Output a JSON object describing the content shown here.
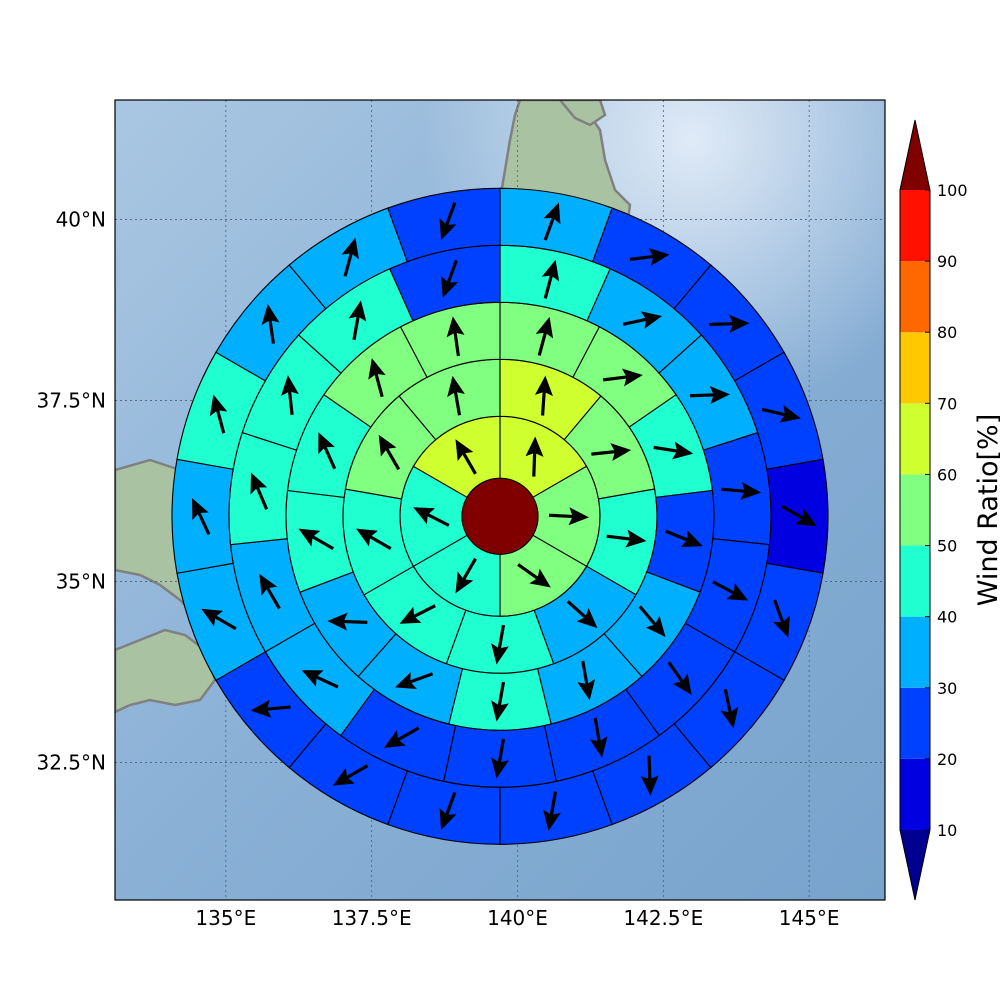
{
  "chart_data": {
    "type": "heatmap",
    "subtype": "polar-sector-wind-map",
    "title": "",
    "xlabel": "",
    "ylabel": "",
    "x_ticks": [
      "135°E",
      "137.5°E",
      "140°E",
      "142.5°E",
      "145°E"
    ],
    "x_tick_values": [
      135,
      137.5,
      140,
      142.5,
      145
    ],
    "y_ticks": [
      "40°N",
      "37.5°N",
      "35°N",
      "32.5°N"
    ],
    "y_tick_values": [
      40,
      37.5,
      35,
      32.5
    ],
    "xlim": [
      133.1,
      146.3
    ],
    "ylim": [
      30.6,
      41.65
    ],
    "center": {
      "lon": 139.7,
      "lat": 35.9,
      "value": 100
    },
    "colorbar": {
      "label": "Wind Ratio[%]",
      "ticks": [
        "10",
        "20",
        "30",
        "40",
        "50",
        "60",
        "70",
        "80",
        "90",
        "100"
      ],
      "levels": [
        10,
        20,
        30,
        40,
        50,
        60,
        70,
        80,
        90,
        100
      ],
      "colors": [
        "#0000e0",
        "#0040ff",
        "#00b0ff",
        "#20ffd0",
        "#80ff80",
        "#d0ff30",
        "#ffc800",
        "#ff6800",
        "#ff1000"
      ],
      "under_color": "#000090",
      "over_color": "#800000",
      "extend": "both"
    },
    "grid": true,
    "map": {
      "land_color": "#a8c4a0",
      "sea_color": "#8fb2d6",
      "coast_color": "#808080"
    },
    "rings": [
      {
        "ring": 1,
        "sectors": [
          {
            "v": 65,
            "dir": 2
          },
          {
            "v": 55,
            "dir": 93
          },
          {
            "v": 55,
            "dir": 125
          },
          {
            "v": 45,
            "dir": 210
          },
          {
            "v": 45,
            "dir": 297
          },
          {
            "v": 65,
            "dir": 330
          }
        ]
      },
      {
        "ring": 2,
        "sectors": [
          {
            "v": 65,
            "dir": 4
          },
          {
            "v": 55,
            "dir": 84
          },
          {
            "v": 45,
            "dir": 97
          },
          {
            "v": 35,
            "dir": 132
          },
          {
            "v": 45,
            "dir": 190
          },
          {
            "v": 45,
            "dir": 243
          },
          {
            "v": 45,
            "dir": 300
          },
          {
            "v": 55,
            "dir": 330
          },
          {
            "v": 55,
            "dir": 350
          }
        ]
      },
      {
        "ring": 3,
        "sectors": [
          {
            "v": 55,
            "dir": 15
          },
          {
            "v": 55,
            "dir": 83
          },
          {
            "v": 45,
            "dir": 99
          },
          {
            "v": 25,
            "dir": 112
          },
          {
            "v": 35,
            "dir": 140
          },
          {
            "v": 35,
            "dir": 170
          },
          {
            "v": 45,
            "dir": 190
          },
          {
            "v": 35,
            "dir": 250
          },
          {
            "v": 35,
            "dir": 272
          },
          {
            "v": 45,
            "dir": 300
          },
          {
            "v": 45,
            "dir": 336
          },
          {
            "v": 55,
            "dir": 345
          },
          {
            "v": 55,
            "dir": 352
          }
        ]
      },
      {
        "ring": 4,
        "sectors": [
          {
            "v": 45,
            "dir": 15
          },
          {
            "v": 35,
            "dir": 78
          },
          {
            "v": 35,
            "dir": 88
          },
          {
            "v": 25,
            "dir": 95
          },
          {
            "v": 25,
            "dir": 118
          },
          {
            "v": 25,
            "dir": 145
          },
          {
            "v": 25,
            "dir": 170
          },
          {
            "v": 25,
            "dir": 190
          },
          {
            "v": 25,
            "dir": 240
          },
          {
            "v": 35,
            "dir": 295
          },
          {
            "v": 35,
            "dir": 330
          },
          {
            "v": 45,
            "dir": 337
          },
          {
            "v": 45,
            "dir": 354
          },
          {
            "v": 45,
            "dir": 10
          },
          {
            "v": 25,
            "dir": 200
          }
        ]
      },
      {
        "ring": 5,
        "sectors": [
          {
            "v": 35,
            "dir": 20
          },
          {
            "v": 25,
            "dir": 83
          },
          {
            "v": 25,
            "dir": 88
          },
          {
            "v": 25,
            "dir": 103
          },
          {
            "v": 15,
            "dir": 120
          },
          {
            "v": 25,
            "dir": 160
          },
          {
            "v": 25,
            "dir": 168
          },
          {
            "v": 25,
            "dir": 178
          },
          {
            "v": 25,
            "dir": 190
          },
          {
            "v": 25,
            "dir": 200
          },
          {
            "v": 25,
            "dir": 240
          },
          {
            "v": 25,
            "dir": 265
          },
          {
            "v": 35,
            "dir": 300
          },
          {
            "v": 35,
            "dir": 335
          },
          {
            "v": 45,
            "dir": 345
          },
          {
            "v": 35,
            "dir": 352
          },
          {
            "v": 35,
            "dir": 15
          },
          {
            "v": 25,
            "dir": 200
          }
        ]
      }
    ]
  }
}
